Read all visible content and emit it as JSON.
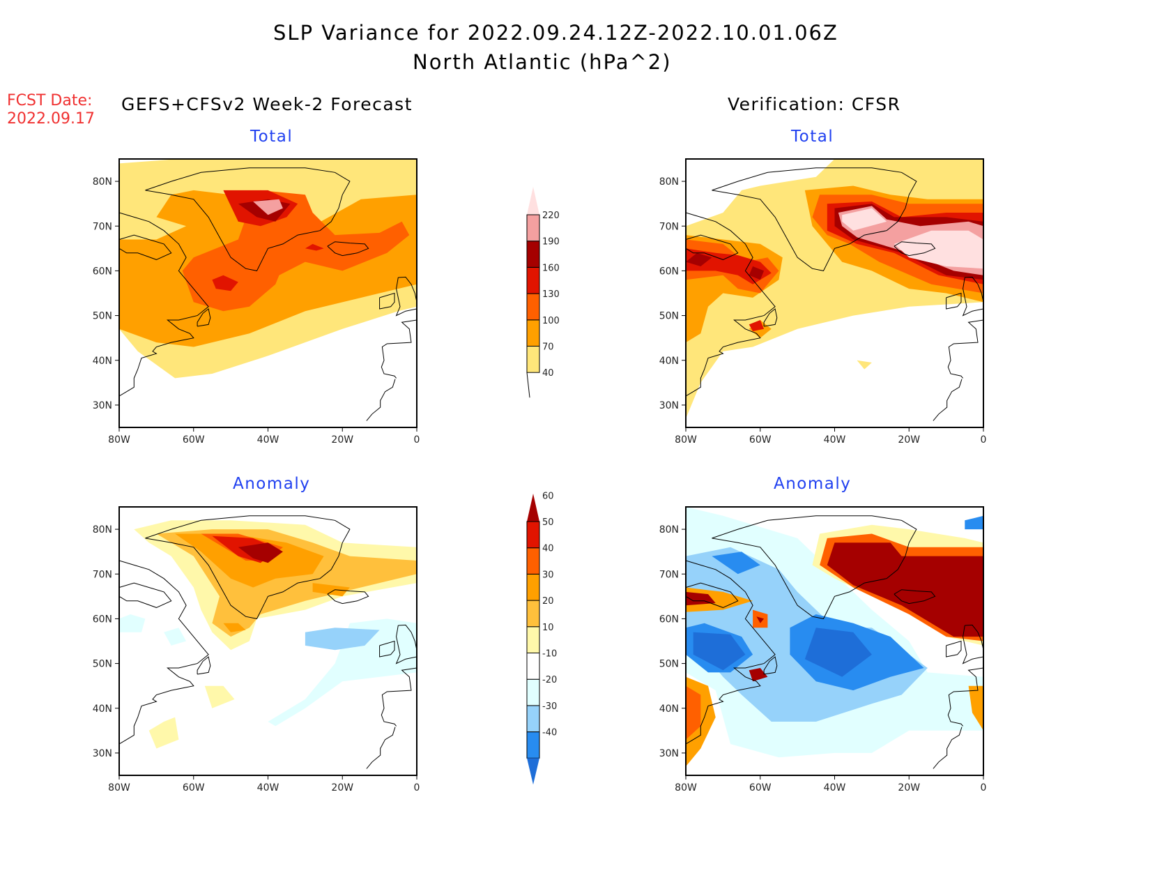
{
  "header": {
    "title_line1": "SLP Variance for 2022.09.24.12Z-2022.10.01.06Z",
    "title_line2": "North Atlantic (hPa^2)",
    "fcst_label": "FCST Date:",
    "fcst_date": "2022.09.17",
    "left_column_title": "GEFS+CFSv2 Week-2 Forecast",
    "right_column_title": "Verification: CFSR"
  },
  "colors": {
    "total_scale": [
      "#ffe67a",
      "#ffa000",
      "#ff6000",
      "#e11400",
      "#a50000",
      "#f4a0a0",
      "#ffe0e0"
    ],
    "anomaly_scale": [
      "#1e6ed8",
      "#288cf0",
      "#96d2fa",
      "#e1ffff",
      "#ffffff",
      "#fff8aa",
      "#ffc03c",
      "#ffa000",
      "#ff6000",
      "#e11400",
      "#a50000"
    ]
  },
  "chart_data": [
    {
      "type": "heatmap",
      "title": "Total",
      "column": "GEFS+CFSv2 Week-2 Forecast",
      "xlim": [
        -80,
        0
      ],
      "ylim": [
        25,
        85
      ],
      "xticks": [
        "80W",
        "60W",
        "40W",
        "20W",
        "0"
      ],
      "yticks": [
        "30N",
        "40N",
        "50N",
        "60N",
        "70N",
        "80N"
      ],
      "features": [
        {
          "desc": "max east Greenland",
          "lon": -40,
          "lat": 75,
          "value": 200
        },
        {
          "desc": "Labrador Sea max",
          "lon": -52,
          "lat": 58,
          "value": 140
        },
        {
          "desc": "Iceland band",
          "lon": -25,
          "lat": 65,
          "value": 130
        }
      ]
    },
    {
      "type": "heatmap",
      "title": "Total",
      "column": "Verification: CFSR",
      "xlim": [
        -80,
        0
      ],
      "ylim": [
        25,
        85
      ],
      "xticks": [
        "80W",
        "60W",
        "40W",
        "20W",
        "0"
      ],
      "yticks": [
        "30N",
        "40N",
        "50N",
        "60N",
        "70N",
        "80N"
      ],
      "features": [
        {
          "desc": "east Greenland max",
          "lon": -38,
          "lat": 72,
          "value": 230
        },
        {
          "desc": "Iceland max",
          "lon": -12,
          "lat": 64,
          "value": 230
        },
        {
          "desc": "Labrador max",
          "lon": -60,
          "lat": 60,
          "value": 170
        },
        {
          "desc": "Gulf of St Lawrence max",
          "lon": -62,
          "lat": 47,
          "value": 140
        }
      ]
    },
    {
      "type": "heatmap",
      "title": "Anomaly",
      "column": "GEFS+CFSv2 Week-2 Forecast",
      "xlim": [
        -80,
        0
      ],
      "ylim": [
        25,
        85
      ],
      "xticks": [
        "80W",
        "60W",
        "40W",
        "20W",
        "0"
      ],
      "yticks": [
        "30N",
        "40N",
        "50N",
        "60N",
        "70N",
        "80N"
      ],
      "features": [
        {
          "desc": "east Greenland max",
          "lon": -40,
          "lat": 74,
          "value": 65
        },
        {
          "desc": "mid-Atlantic min",
          "lon": -25,
          "lat": 55,
          "value": -25
        }
      ]
    },
    {
      "type": "heatmap",
      "title": "Anomaly",
      "column": "Verification: CFSR",
      "xlim": [
        -80,
        0
      ],
      "ylim": [
        25,
        85
      ],
      "xticks": [
        "80W",
        "60W",
        "40W",
        "20W",
        "0"
      ],
      "yticks": [
        "30N",
        "40N",
        "50N",
        "60N",
        "70N",
        "80N"
      ],
      "features": [
        {
          "desc": "Iceland/east Greenland max",
          "lon": -15,
          "lat": 68,
          "value": 70
        },
        {
          "desc": "central Atlantic min",
          "lon": -40,
          "lat": 52,
          "value": -45
        },
        {
          "desc": "Labrador Sea min",
          "lon": -70,
          "lat": 55,
          "value": -40
        }
      ]
    }
  ],
  "colorbars": {
    "total": {
      "labels": [
        "40",
        "70",
        "100",
        "130",
        "160",
        "190",
        "220"
      ]
    },
    "anomaly": {
      "labels": [
        "-40",
        "-30",
        "-20",
        "-10",
        "10",
        "20",
        "30",
        "40",
        "50",
        "60"
      ]
    }
  }
}
